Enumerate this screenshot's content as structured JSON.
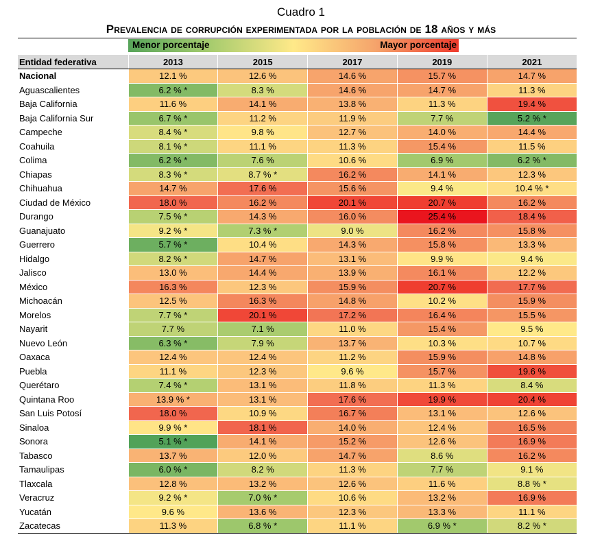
{
  "caption": "Cuadro 1",
  "title": "Prevalencia de corrupción experimentada por la población de 18 años y más",
  "legend": {
    "low_label": "Menor porcentaje",
    "high_label": "Mayor porcentaje"
  },
  "colors": {
    "low": "#57a45a",
    "mid": "#ffe989",
    "high": "#ef1c24",
    "header_bg": "#d9d9d9"
  },
  "table": {
    "headers": [
      "Entidad federativa",
      "2013",
      "2015",
      "2017",
      "2019",
      "2021"
    ],
    "rows": [
      {
        "state": "Nacional",
        "values": [
          "12.1 %",
          "12.6 %",
          "14.6 %",
          "15.7 %",
          "14.7 %"
        ]
      },
      {
        "state": "Aguascalientes",
        "values": [
          "6.2 % *",
          "8.3 %",
          "14.6 %",
          "14.7 %",
          "11.3 %"
        ]
      },
      {
        "state": "Baja California",
        "values": [
          "11.6 %",
          "14.1 %",
          "13.8 %",
          "11.3 %",
          "19.4 %"
        ]
      },
      {
        "state": "Baja California Sur",
        "values": [
          "6.7 % *",
          "11.2 %",
          "11.9 %",
          "7.7 %",
          "5.2 % *"
        ]
      },
      {
        "state": "Campeche",
        "values": [
          "8.4 % *",
          "9.8 %",
          "12.7 %",
          "14.0 %",
          "14.4 %"
        ]
      },
      {
        "state": "Coahuila",
        "values": [
          "8.1 % *",
          "11.1 %",
          "11.3 %",
          "15.4 %",
          "11.5 %"
        ]
      },
      {
        "state": "Colima",
        "values": [
          "6.2 % *",
          "7.6 %",
          "10.6 %",
          "6.9 %",
          "6.2 % *"
        ]
      },
      {
        "state": "Chiapas",
        "values": [
          "8.3 % *",
          "8.7 % *",
          "16.2 %",
          "14.1 %",
          "12.3 %"
        ]
      },
      {
        "state": "Chihuahua",
        "values": [
          "14.7 %",
          "17.6 %",
          "15.6 %",
          "9.4 %",
          "10.4 % *"
        ]
      },
      {
        "state": "Ciudad de México",
        "values": [
          "18.0 %",
          "16.2 %",
          "20.1 %",
          "20.7 %",
          "16.2 %"
        ]
      },
      {
        "state": "Durango",
        "values": [
          "7.5 % *",
          "14.3 %",
          "16.0 %",
          "25.4 %",
          "18.4 %"
        ]
      },
      {
        "state": "Guanajuato",
        "values": [
          "9.2 % *",
          "7.3 % *",
          "9.0 %",
          "16.2 %",
          "15.8 %"
        ]
      },
      {
        "state": "Guerrero",
        "values": [
          "5.7 % *",
          "10.4 %",
          "14.3 %",
          "15.8 %",
          "13.3 %"
        ]
      },
      {
        "state": "Hidalgo",
        "values": [
          "8.2 % *",
          "14.7 %",
          "13.1 %",
          "9.9 %",
          "9.4 %"
        ]
      },
      {
        "state": "Jalisco",
        "values": [
          "13.0 %",
          "14.4 %",
          "13.9 %",
          "16.1 %",
          "12.2 %"
        ]
      },
      {
        "state": "México",
        "values": [
          "16.3 %",
          "12.3 %",
          "15.9 %",
          "20.7 %",
          "17.7 %"
        ]
      },
      {
        "state": "Michoacán",
        "values": [
          "12.5 %",
          "16.3 %",
          "14.8 %",
          "10.2 %",
          "15.9 %"
        ]
      },
      {
        "state": "Morelos",
        "values": [
          "7.7 % *",
          "20.1 %",
          "17.2 %",
          "16.4 %",
          "15.5 %"
        ]
      },
      {
        "state": "Nayarit",
        "values": [
          "7.7 %",
          "7.1 %",
          "11.0 %",
          "15.4 %",
          "9.5 %"
        ]
      },
      {
        "state": "Nuevo León",
        "values": [
          "6.3 % *",
          "7.9 %",
          "13.7 %",
          "10.3 %",
          "10.7 %"
        ]
      },
      {
        "state": "Oaxaca",
        "values": [
          "12.4 %",
          "12.4 %",
          "11.2 %",
          "15.9 %",
          "14.8 %"
        ]
      },
      {
        "state": "Puebla",
        "values": [
          "11.1 %",
          "12.3 %",
          "9.6 %",
          "15.7 %",
          "19.6 %"
        ]
      },
      {
        "state": "Querétaro",
        "values": [
          "7.4 % *",
          "13.1 %",
          "11.8 %",
          "11.3 %",
          "8.4 %"
        ]
      },
      {
        "state": "Quintana Roo",
        "values": [
          "13.9 % *",
          "13.1 %",
          "17.6 %",
          "19.9 %",
          "20.4 %"
        ]
      },
      {
        "state": "San Luis Potosí",
        "values": [
          "18.0 %",
          "10.9 %",
          "16.7 %",
          "13.1 %",
          "12.6 %"
        ]
      },
      {
        "state": "Sinaloa",
        "values": [
          "9.9 % *",
          "18.1 %",
          "14.0 %",
          "12.4 %",
          "16.5 %"
        ]
      },
      {
        "state": "Sonora",
        "values": [
          "5.1 % *",
          "14.1 %",
          "15.2 %",
          "12.6 %",
          "16.9 %"
        ]
      },
      {
        "state": "Tabasco",
        "values": [
          "13.7 %",
          "12.0 %",
          "14.7 %",
          "8.6 %",
          "16.2 %"
        ]
      },
      {
        "state": "Tamaulipas",
        "values": [
          "6.0 % *",
          "8.2 %",
          "11.3 %",
          "7.7 %",
          "9.1 %"
        ]
      },
      {
        "state": "Tlaxcala",
        "values": [
          "12.8 %",
          "13.2 %",
          "12.6 %",
          "11.6 %",
          "8.8 % *"
        ]
      },
      {
        "state": "Veracruz",
        "values": [
          "9.2 % *",
          "7.0 % *",
          "10.6 %",
          "13.2 %",
          "16.9 %"
        ]
      },
      {
        "state": "Yucatán",
        "values": [
          "9.6 %",
          "13.6 %",
          "12.3 %",
          "13.3 %",
          "11.1 %"
        ]
      },
      {
        "state": "Zacatecas",
        "values": [
          "11.3 %",
          "6.8 % *",
          "11.1 %",
          "6.9 % *",
          "8.2 % *"
        ]
      }
    ]
  }
}
